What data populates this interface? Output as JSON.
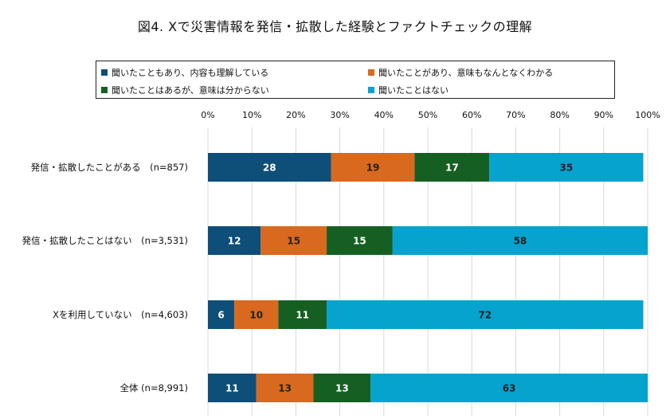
{
  "chart_data": {
    "type": "bar",
    "orientation": "horizontal",
    "stacked": true,
    "title": "図4. Xで災害情報を発信・拡散した経験とファクトチェックの理解",
    "categories": [
      "発信・拡散したことがある　(n=857)",
      "発信・拡散したことはない　(n=3,531)",
      "Xを利用していない　(n=4,603)",
      "全体 (n=8,991)"
    ],
    "series": [
      {
        "name": "聞いたこともあり、内容も理解している",
        "color": "#0d4f78",
        "values": [
          28,
          12,
          6,
          11
        ]
      },
      {
        "name": "聞いたことがあり、意味もなんとなくわかる",
        "color": "#d8691e",
        "values": [
          19,
          15,
          10,
          13
        ]
      },
      {
        "name": "聞いたことはあるが、意味は分からない",
        "color": "#165f22",
        "values": [
          17,
          15,
          11,
          13
        ]
      },
      {
        "name": "聞いたことはない",
        "color": "#06a3cf",
        "values": [
          35,
          58,
          72,
          63
        ]
      }
    ],
    "x_ticks": [
      "0%",
      "10%",
      "20%",
      "30%",
      "40%",
      "50%",
      "60%",
      "70%",
      "80%",
      "90%",
      "100%"
    ],
    "xlim": [
      0,
      100
    ],
    "legend_position": "top",
    "grid": true,
    "value_label_colors": [
      "#ffffff",
      "#222222",
      "#ffffff",
      "#222222"
    ]
  }
}
